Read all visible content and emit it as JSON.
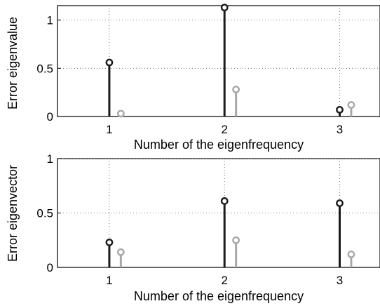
{
  "chart_data": [
    {
      "type": "stem",
      "title": "",
      "xlabel": "Number of the eigenfrequency",
      "ylabel": "Error eigenvalue",
      "xlim": [
        0.55,
        3.35
      ],
      "ylim": [
        0,
        1.15
      ],
      "x_ticks": [
        1,
        2,
        3
      ],
      "x_tick_labels": [
        "1",
        "2",
        "3"
      ],
      "y_ticks": [
        0,
        0.5,
        1
      ],
      "y_tick_labels": [
        "0",
        "0.5",
        "1"
      ],
      "grid": true,
      "grid_style": "dotted",
      "legend": "none",
      "categories": [
        1,
        2,
        3
      ],
      "series": [
        {
          "color": "#1a1a1a",
          "x": [
            1,
            2,
            3
          ],
          "values": [
            0.56,
            1.13,
            0.07
          ]
        },
        {
          "color": "#a8a8a8",
          "x": [
            1.1,
            2.1,
            3.1
          ],
          "values": [
            0.03,
            0.28,
            0.12
          ]
        }
      ]
    },
    {
      "type": "stem",
      "title": "",
      "xlabel": "Number of the eigenfrequency",
      "ylabel": "Error eigenvector",
      "xlim": [
        0.55,
        3.35
      ],
      "ylim": [
        0,
        1
      ],
      "x_ticks": [
        1,
        2,
        3
      ],
      "x_tick_labels": [
        "1",
        "2",
        "3"
      ],
      "y_ticks": [
        0,
        0.5,
        1
      ],
      "y_tick_labels": [
        "0",
        "0.5",
        "1"
      ],
      "grid": true,
      "grid_style": "dotted",
      "legend": "none",
      "categories": [
        1,
        2,
        3
      ],
      "series": [
        {
          "color": "#1a1a1a",
          "x": [
            1,
            2,
            3
          ],
          "values": [
            0.23,
            0.61,
            0.59
          ]
        },
        {
          "color": "#a8a8a8",
          "x": [
            1.1,
            2.1,
            3.1
          ],
          "values": [
            0.14,
            0.25,
            0.12
          ]
        }
      ]
    }
  ]
}
